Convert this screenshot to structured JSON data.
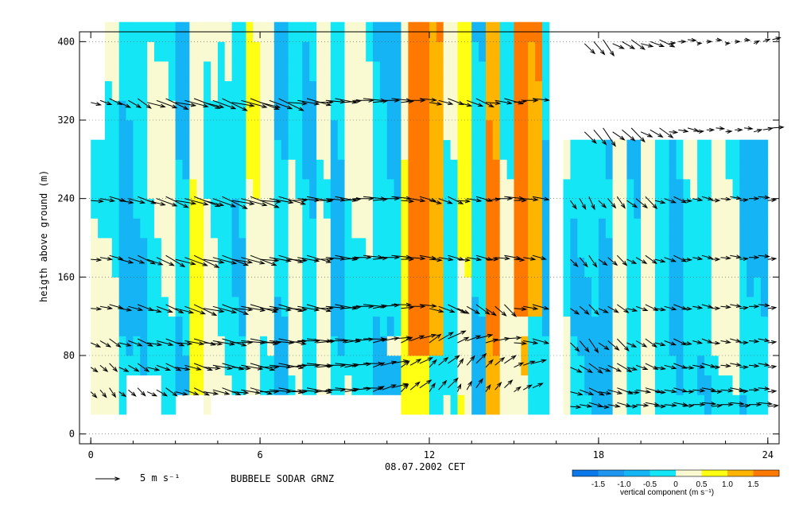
{
  "chart_data": {
    "type": "heatmap",
    "title": "",
    "xlabel": "08.07.2002 CET",
    "ylabel": "heigth above ground (m)",
    "xlim": [
      -0.4,
      24.4
    ],
    "ylim": [
      -10,
      410
    ],
    "xticks": [
      "0",
      "6",
      "12",
      "18",
      "24"
    ],
    "yticks": [
      "0",
      "80",
      "160",
      "240",
      "320",
      "400"
    ],
    "station_label": "BUBBELE SODAR GRNZ",
    "vector_legend": "5 m s⁻¹",
    "colorbar": {
      "label": "vertical component (m s⁻¹)",
      "ticks": [
        "-1.5",
        "-1.0",
        "-0.5",
        "0",
        "0.5",
        "1.0",
        "1.5"
      ],
      "bins": [
        -2.0,
        -1.5,
        -1.0,
        -0.5,
        0.0,
        0.5,
        1.0,
        1.5,
        2.0
      ],
      "colors": [
        "#0a78e8",
        "#1e96f0",
        "#14b4f5",
        "#14e6f5",
        "#fafad2",
        "#ffff14",
        "#ffb400",
        "#ff7800"
      ]
    },
    "grid": true,
    "series": [
      {
        "name": "wind 400 m",
        "height": 400,
        "x": [
          17.5,
          18.5,
          19.5,
          20.5,
          21.5,
          22.5,
          23.5
        ],
        "speed": [
          3.5,
          3.0,
          3.0,
          1.5,
          1.0,
          1.0,
          1.5
        ],
        "dir_deg": [
          320,
          300,
          290,
          270,
          270,
          270,
          250
        ]
      },
      {
        "name": "wind 340 m",
        "height": 340,
        "x": [
          0,
          1,
          2,
          3,
          4,
          5,
          6,
          7,
          8,
          9,
          10,
          11,
          12,
          13,
          14,
          15
        ],
        "speed": [
          2.5,
          3.0,
          4.5,
          5.0,
          5.0,
          5.5,
          5.0,
          4.5,
          4.0,
          4.0,
          3.5,
          3.0,
          3.0,
          3.5,
          3.5,
          3.0
        ],
        "dir_deg": [
          290,
          300,
          290,
          285,
          290,
          285,
          290,
          280,
          275,
          270,
          270,
          270,
          285,
          290,
          280,
          270
        ]
      },
      {
        "name": "wind 310 m",
        "height": 310,
        "x": [
          17.5,
          18.5,
          19.5,
          20.5,
          21.5,
          22.5,
          23.5
        ],
        "speed": [
          4.0,
          3.5,
          3.0,
          2.0,
          1.5,
          1.5,
          2.0
        ],
        "dir_deg": [
          320,
          310,
          300,
          280,
          270,
          270,
          260
        ]
      },
      {
        "name": "wind 240 m",
        "height": 240,
        "x": [
          0,
          1,
          2,
          3,
          4,
          5,
          6,
          7,
          8,
          9,
          10,
          11,
          12,
          13,
          14,
          15,
          17,
          18,
          19,
          20,
          21,
          22,
          23,
          24
        ],
        "speed": [
          3.0,
          3.5,
          4.5,
          5.0,
          5.0,
          5.5,
          5.0,
          4.5,
          4.0,
          4.0,
          3.5,
          3.0,
          3.0,
          3.0,
          3.5,
          3.0,
          2.5,
          2.5,
          3.0,
          2.5,
          2.0,
          2.0,
          2.0,
          2.0
        ],
        "dir_deg": [
          280,
          285,
          290,
          285,
          290,
          285,
          280,
          275,
          275,
          270,
          270,
          280,
          290,
          280,
          270,
          275,
          330,
          320,
          310,
          290,
          280,
          275,
          270,
          270
        ]
      },
      {
        "name": "wind 180 m",
        "height": 180,
        "x": [
          0,
          1,
          2,
          3,
          4,
          5,
          6,
          7,
          8,
          9,
          10,
          11,
          12,
          13,
          14,
          15,
          17,
          18,
          19,
          20,
          21,
          22,
          23,
          24
        ],
        "speed": [
          2.5,
          3.5,
          4.0,
          5.0,
          5.0,
          5.0,
          4.5,
          4.5,
          4.0,
          3.5,
          3.5,
          3.0,
          3.0,
          3.0,
          3.0,
          2.5,
          2.5,
          2.5,
          2.5,
          2.5,
          2.0,
          2.0,
          2.0,
          2.0
        ],
        "dir_deg": [
          280,
          290,
          295,
          290,
          285,
          285,
          280,
          280,
          275,
          270,
          270,
          275,
          280,
          280,
          275,
          280,
          320,
          310,
          300,
          290,
          280,
          275,
          270,
          270
        ]
      },
      {
        "name": "wind 130 m",
        "height": 130,
        "x": [
          0,
          1,
          2,
          3,
          4,
          5,
          6,
          7,
          8,
          9,
          10,
          11,
          12,
          13,
          14,
          15,
          17,
          18,
          19,
          20,
          21,
          22,
          23,
          24
        ],
        "speed": [
          2.5,
          3.0,
          3.5,
          4.5,
          5.0,
          5.0,
          4.5,
          4.5,
          4.0,
          4.0,
          3.5,
          3.0,
          3.5,
          3.0,
          3.0,
          3.0,
          2.5,
          2.5,
          2.5,
          2.5,
          2.0,
          2.0,
          2.0,
          2.0
        ],
        "dir_deg": [
          280,
          285,
          290,
          290,
          285,
          280,
          280,
          280,
          275,
          270,
          265,
          270,
          290,
          300,
          310,
          280,
          310,
          300,
          290,
          285,
          280,
          275,
          270,
          270
        ]
      },
      {
        "name": "wind 95 m",
        "height": 95,
        "x": [
          0,
          1,
          2,
          3,
          4,
          5,
          6,
          7,
          8,
          9,
          10,
          11,
          12,
          13,
          14,
          15,
          17,
          18,
          19,
          20,
          21,
          22,
          23,
          24
        ],
        "speed": [
          2.5,
          3.0,
          3.5,
          4.0,
          4.5,
          5.0,
          5.0,
          4.5,
          4.5,
          4.0,
          3.5,
          3.0,
          3.5,
          3.0,
          3.0,
          3.0,
          3.0,
          3.0,
          2.5,
          2.5,
          2.0,
          2.0,
          2.0,
          2.0
        ],
        "dir_deg": [
          300,
          290,
          285,
          280,
          280,
          275,
          275,
          270,
          270,
          265,
          260,
          250,
          240,
          250,
          260,
          280,
          320,
          310,
          300,
          290,
          285,
          280,
          275,
          270
        ]
      },
      {
        "name": "wind 70 m",
        "height": 70,
        "x": [
          0,
          1,
          2,
          3,
          4,
          5,
          6,
          7,
          8,
          9,
          10,
          11,
          12,
          13,
          14,
          15,
          17,
          18,
          19,
          20,
          21,
          22,
          23,
          24
        ],
        "speed": [
          2.0,
          2.5,
          3.0,
          3.5,
          4.0,
          4.5,
          4.5,
          4.5,
          4.0,
          3.5,
          3.0,
          2.5,
          2.5,
          2.5,
          2.5,
          2.5,
          3.0,
          3.0,
          2.5,
          2.5,
          2.5,
          2.0,
          2.0,
          2.0
        ],
        "dir_deg": [
          310,
          300,
          290,
          285,
          280,
          280,
          275,
          270,
          270,
          265,
          255,
          240,
          230,
          220,
          230,
          250,
          300,
          295,
          290,
          285,
          280,
          275,
          275,
          270
        ]
      },
      {
        "name": "wind 45 m",
        "height": 45,
        "x": [
          0,
          1,
          2,
          3,
          4,
          5,
          6,
          7,
          8,
          9,
          10,
          11,
          12,
          13,
          14,
          15,
          17,
          18,
          19,
          20,
          21,
          22,
          23,
          24
        ],
        "speed": [
          2.0,
          2.0,
          2.5,
          3.0,
          3.5,
          4.0,
          4.5,
          4.5,
          4.0,
          3.5,
          3.0,
          2.5,
          2.5,
          2.0,
          2.0,
          2.0,
          3.0,
          3.0,
          3.0,
          2.5,
          2.5,
          2.5,
          2.0,
          2.0
        ],
        "dir_deg": [
          320,
          310,
          300,
          290,
          285,
          280,
          275,
          275,
          270,
          265,
          250,
          230,
          220,
          210,
          220,
          240,
          290,
          285,
          280,
          280,
          275,
          275,
          270,
          270
        ]
      },
      {
        "name": "wind 30 m",
        "height": 30,
        "x": [
          17,
          18,
          19,
          20,
          21,
          22,
          23,
          24
        ],
        "speed": [
          2.5,
          2.5,
          2.5,
          2.5,
          2.5,
          2.5,
          2.5,
          2.5
        ],
        "dir_deg": [
          280,
          280,
          275,
          275,
          270,
          270,
          270,
          270
        ]
      }
    ]
  }
}
